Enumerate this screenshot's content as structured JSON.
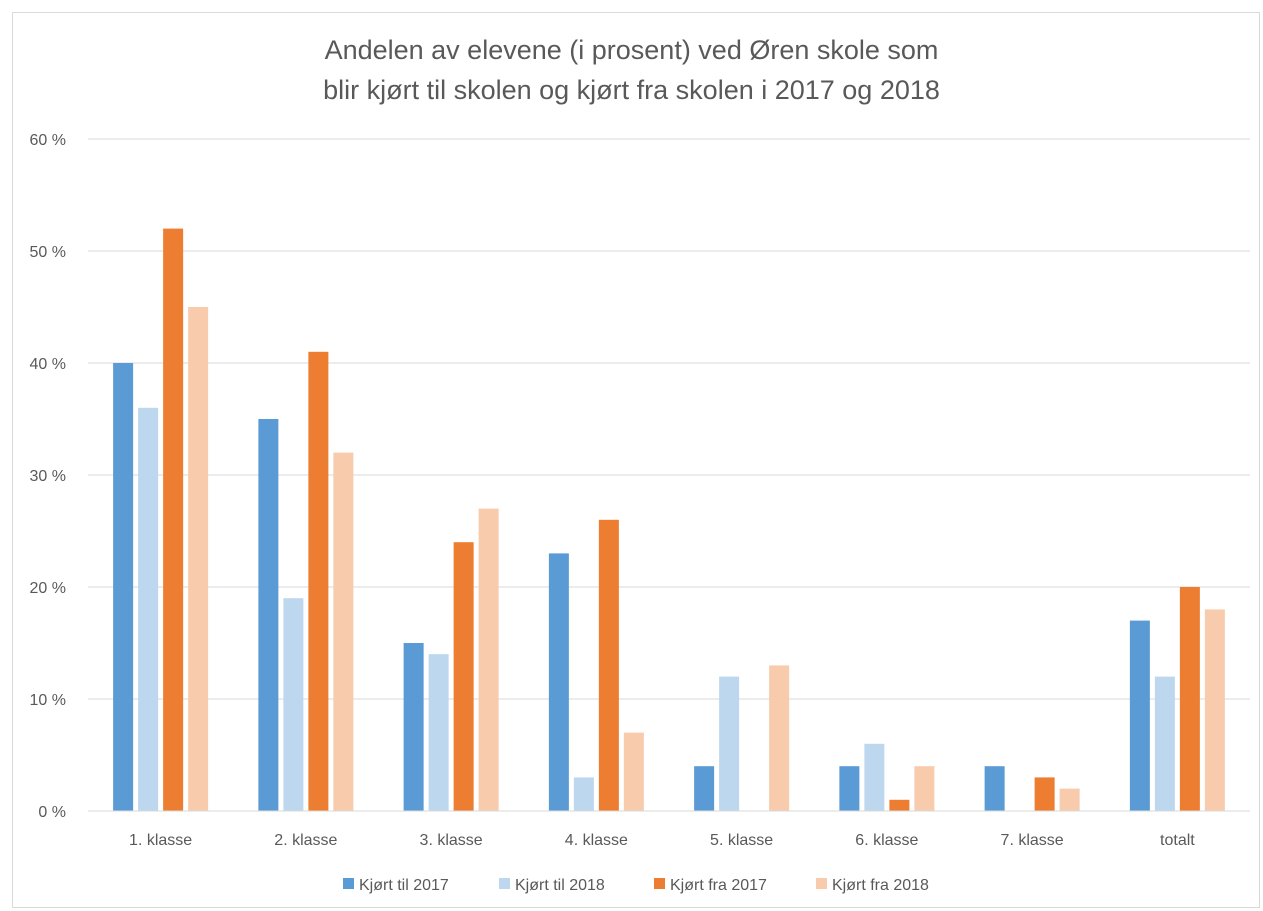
{
  "chart_data": {
    "type": "bar",
    "title_lines": [
      "Andelen av elevene (i prosent) ved Øren skole som",
      "blir kjørt til skolen og kjørt fra skolen i 2017 og 2018"
    ],
    "categories": [
      "1. klasse",
      "2. klasse",
      "3. klasse",
      "4. klasse",
      "5. klasse",
      "6. klasse",
      "7. klasse",
      "totalt"
    ],
    "series": [
      {
        "name": "Kjørt til 2017",
        "color": "#5b9bd5",
        "values": [
          40,
          35,
          15,
          23,
          4,
          4,
          4,
          17
        ]
      },
      {
        "name": "Kjørt til 2018",
        "color": "#bdd7ee",
        "values": [
          36,
          19,
          14,
          3,
          12,
          6,
          0,
          12
        ]
      },
      {
        "name": "Kjørt fra 2017",
        "color": "#ed7d31",
        "values": [
          52,
          41,
          24,
          26,
          0,
          1,
          3,
          20
        ]
      },
      {
        "name": "Kjørt fra 2018",
        "color": "#f8cbad",
        "values": [
          45,
          32,
          27,
          7,
          13,
          4,
          2,
          18
        ]
      }
    ],
    "ylim": [
      0,
      60
    ],
    "yticks": [
      0,
      10,
      20,
      30,
      40,
      50,
      60
    ],
    "ytick_labels": [
      "0 %",
      "10 %",
      "20 %",
      "30 %",
      "40 %",
      "50 %",
      "60 %"
    ],
    "grid": true,
    "legend_position": "bottom"
  }
}
